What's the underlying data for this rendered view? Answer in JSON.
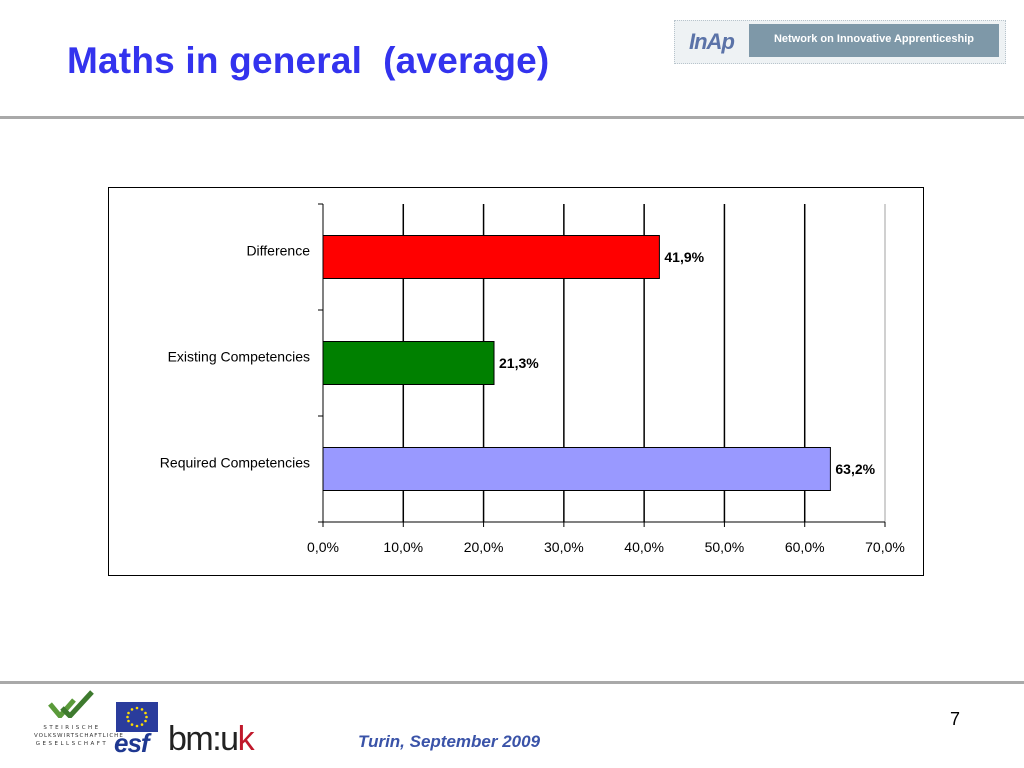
{
  "slide": {
    "title": "Maths in general  (average)",
    "header_logo": {
      "mark": "InAp",
      "text": "Network on Innovative Apprenticeship"
    },
    "footer_date": "Turin, September 2009",
    "page_number": "7",
    "footer_logos": {
      "steirische": [
        "STEIRISCHE",
        "VOLKSWIRTSCHAFTLICHE",
        "GESELLSCHAFT"
      ],
      "esf": "esf",
      "bmuk_main": "bm:u",
      "bmuk_k": "k"
    }
  },
  "chart_data": {
    "type": "bar",
    "orientation": "horizontal",
    "categories": [
      "Difference",
      "Existing Competencies",
      "Required Competencies"
    ],
    "values": [
      41.9,
      21.3,
      63.2
    ],
    "data_labels": [
      "41,9%",
      "21,3%",
      "63,2%"
    ],
    "colors": [
      "#ff0000",
      "#008000",
      "#9999ff"
    ],
    "xlim": [
      0,
      70
    ],
    "xticks": [
      0,
      10,
      20,
      30,
      40,
      50,
      60,
      70
    ],
    "xtick_labels": [
      "0,0%",
      "10,0%",
      "20,0%",
      "30,0%",
      "40,0%",
      "50,0%",
      "60,0%",
      "70,0%"
    ],
    "grid": "vertical",
    "legend": "none"
  }
}
